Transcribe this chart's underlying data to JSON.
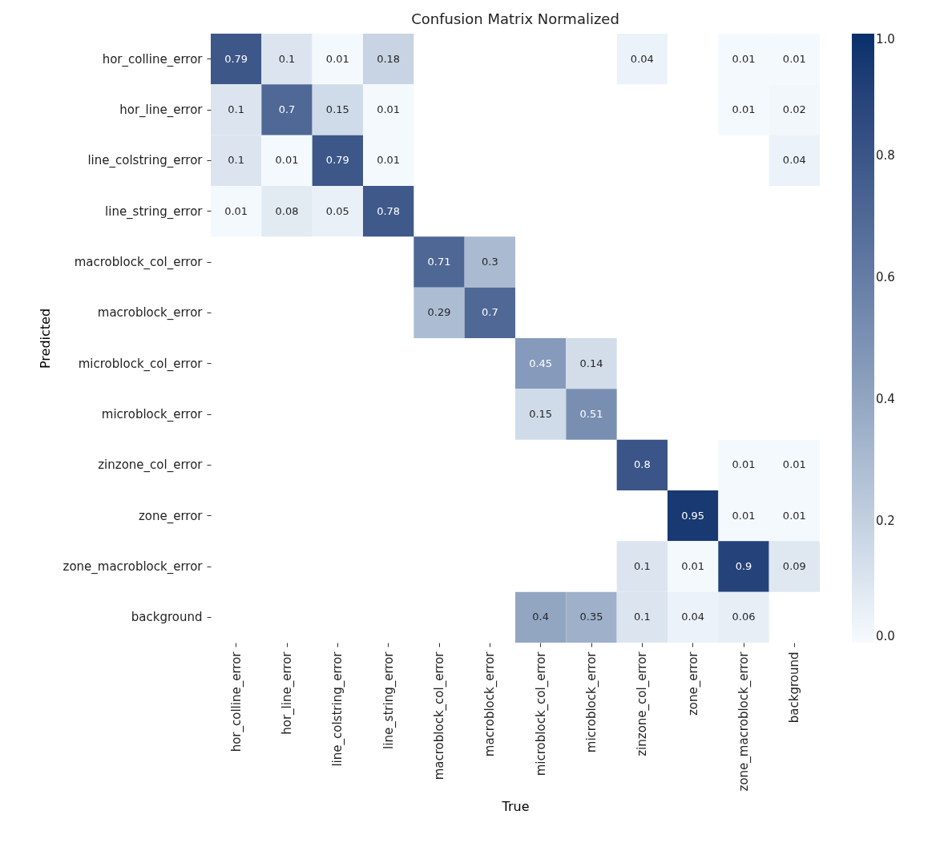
{
  "chart_data": {
    "type": "heatmap",
    "title": "Confusion Matrix Normalized",
    "xlabel": "True",
    "ylabel": "Predicted",
    "categories": [
      "hor_colline_error",
      "hor_line_error",
      "line_colstring_error",
      "line_string_error",
      "macroblock_col_error",
      "macroblock_error",
      "microblock_col_error",
      "microblock_error",
      "zinzone_col_error",
      "zone_error",
      "zone_macroblock_error",
      "background"
    ],
    "y_categories": [
      "hor_colline_error",
      "hor_line_error",
      "line_colstring_error",
      "line_string_error",
      "macroblock_col_error",
      "macroblock_error",
      "microblock_col_error",
      "microblock_error",
      "zinzone_col_error",
      "zone_error",
      "zone_macroblock_error",
      "background"
    ],
    "cells": [
      [
        0.79,
        0.1,
        0.01,
        0.18,
        null,
        null,
        null,
        null,
        0.04,
        null,
        0.01,
        0.01
      ],
      [
        0.1,
        0.7,
        0.15,
        0.01,
        null,
        null,
        null,
        null,
        null,
        null,
        0.01,
        0.02
      ],
      [
        0.1,
        0.01,
        0.79,
        0.01,
        null,
        null,
        null,
        null,
        null,
        null,
        null,
        0.04
      ],
      [
        0.01,
        0.08,
        0.05,
        0.78,
        null,
        null,
        null,
        null,
        null,
        null,
        null,
        null
      ],
      [
        null,
        null,
        null,
        null,
        0.71,
        0.3,
        null,
        null,
        null,
        null,
        null,
        null
      ],
      [
        null,
        null,
        null,
        null,
        0.29,
        0.7,
        null,
        null,
        null,
        null,
        null,
        null
      ],
      [
        null,
        null,
        null,
        null,
        null,
        null,
        0.45,
        0.14,
        null,
        null,
        null,
        null
      ],
      [
        null,
        null,
        null,
        null,
        null,
        null,
        0.15,
        0.51,
        null,
        null,
        null,
        null
      ],
      [
        null,
        null,
        null,
        null,
        null,
        null,
        null,
        null,
        0.8,
        null,
        0.01,
        0.01
      ],
      [
        null,
        null,
        null,
        null,
        null,
        null,
        null,
        null,
        null,
        0.95,
        0.01,
        0.01
      ],
      [
        null,
        null,
        null,
        null,
        null,
        null,
        null,
        null,
        0.1,
        0.01,
        0.9,
        0.09
      ],
      [
        null,
        null,
        null,
        null,
        null,
        null,
        0.4,
        0.35,
        0.1,
        0.04,
        0.06,
        null
      ]
    ],
    "clim": [
      0,
      1
    ],
    "cticks": [
      {
        "value": 0,
        "label": "0.0"
      },
      0.2,
      0.4,
      0.6,
      0.8,
      {
        "value": 1,
        "label": "1.0"
      }
    ],
    "data_labels": true
  }
}
